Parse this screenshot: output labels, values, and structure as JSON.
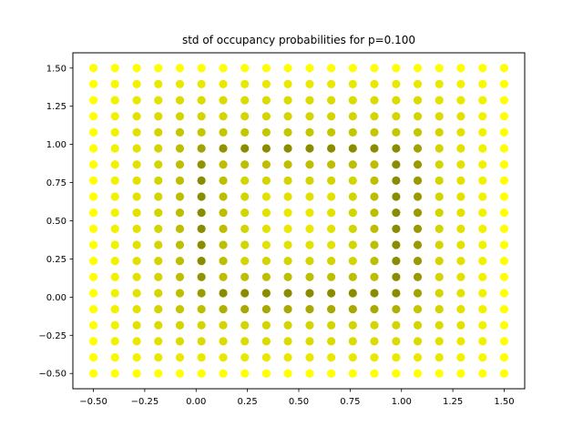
{
  "chart_data": {
    "type": "scatter",
    "title": "std of occupancy probabilities for p=0.100",
    "xlabel": "",
    "ylabel": "",
    "xlim": [
      -0.6,
      1.6
    ],
    "ylim": [
      -0.6,
      1.6
    ],
    "xticks": [
      -0.5,
      -0.25,
      0.0,
      0.25,
      0.5,
      0.75,
      1.0,
      1.25,
      1.5
    ],
    "yticks": [
      -0.5,
      -0.25,
      0.0,
      0.25,
      0.5,
      0.75,
      1.0,
      1.25,
      1.5
    ],
    "xtick_labels": [
      "−0.50",
      "−0.25",
      "0.00",
      "0.25",
      "0.50",
      "0.75",
      "1.00",
      "1.25",
      "1.50"
    ],
    "ytick_labels": [
      "−0.50",
      "−0.25",
      "0.00",
      "0.25",
      "0.50",
      "0.75",
      "1.00",
      "1.25",
      "1.50"
    ],
    "grid": false,
    "colormap": "black-to-yellow (brighter = lower std)",
    "color_low": "#ffff00",
    "color_high": "#6e6e00",
    "x": [
      -0.5,
      -0.395,
      -0.289,
      -0.184,
      -0.079,
      0.026,
      0.132,
      0.237,
      0.342,
      0.447,
      0.553,
      0.658,
      0.763,
      0.868,
      0.974,
      1.079,
      1.184,
      1.289,
      1.395,
      1.5
    ],
    "y": [
      1.5,
      1.395,
      1.289,
      1.184,
      1.079,
      0.974,
      0.868,
      0.763,
      0.658,
      0.553,
      0.447,
      0.342,
      0.237,
      0.132,
      0.026,
      -0.079,
      -0.184,
      -0.289,
      -0.395,
      -0.5
    ],
    "intensity_rows": [
      [
        0.0,
        0.0,
        0.0,
        0.0,
        0.0,
        0.0,
        0.0,
        0.0,
        0.0,
        0.0,
        0.0,
        0.0,
        0.0,
        0.0,
        0.0,
        0.0,
        0.0,
        0.0,
        0.0,
        0.0
      ],
      [
        0.0,
        0.05,
        0.1,
        0.15,
        0.15,
        0.15,
        0.15,
        0.15,
        0.15,
        0.15,
        0.15,
        0.15,
        0.15,
        0.15,
        0.15,
        0.15,
        0.15,
        0.1,
        0.05,
        0.0
      ],
      [
        0.0,
        0.1,
        0.15,
        0.2,
        0.25,
        0.25,
        0.25,
        0.25,
        0.25,
        0.25,
        0.25,
        0.25,
        0.25,
        0.25,
        0.25,
        0.25,
        0.2,
        0.15,
        0.1,
        0.0
      ],
      [
        0.0,
        0.1,
        0.2,
        0.25,
        0.3,
        0.3,
        0.3,
        0.3,
        0.3,
        0.3,
        0.3,
        0.3,
        0.3,
        0.3,
        0.3,
        0.3,
        0.25,
        0.2,
        0.1,
        0.0
      ],
      [
        0.0,
        0.1,
        0.2,
        0.3,
        0.4,
        0.4,
        0.4,
        0.4,
        0.4,
        0.4,
        0.4,
        0.4,
        0.4,
        0.4,
        0.4,
        0.4,
        0.3,
        0.2,
        0.1,
        0.0
      ],
      [
        0.0,
        0.1,
        0.2,
        0.3,
        0.45,
        0.65,
        0.75,
        0.8,
        0.8,
        0.8,
        0.8,
        0.8,
        0.8,
        0.8,
        0.8,
        0.65,
        0.3,
        0.2,
        0.1,
        0.0
      ],
      [
        0.0,
        0.1,
        0.2,
        0.3,
        0.45,
        0.75,
        0.45,
        0.45,
        0.45,
        0.45,
        0.45,
        0.45,
        0.45,
        0.45,
        0.8,
        0.7,
        0.3,
        0.2,
        0.1,
        0.0
      ],
      [
        0.0,
        0.1,
        0.2,
        0.3,
        0.45,
        0.8,
        0.45,
        0.3,
        0.3,
        0.3,
        0.3,
        0.3,
        0.3,
        0.45,
        0.8,
        0.7,
        0.3,
        0.2,
        0.1,
        0.0
      ],
      [
        0.0,
        0.1,
        0.2,
        0.3,
        0.45,
        0.8,
        0.45,
        0.3,
        0.2,
        0.2,
        0.2,
        0.2,
        0.3,
        0.45,
        0.8,
        0.7,
        0.3,
        0.2,
        0.1,
        0.0
      ],
      [
        0.0,
        0.1,
        0.2,
        0.3,
        0.45,
        0.8,
        0.45,
        0.3,
        0.2,
        0.15,
        0.15,
        0.2,
        0.3,
        0.45,
        0.8,
        0.7,
        0.3,
        0.2,
        0.1,
        0.0
      ],
      [
        0.0,
        0.1,
        0.2,
        0.3,
        0.45,
        0.8,
        0.45,
        0.3,
        0.2,
        0.15,
        0.15,
        0.2,
        0.3,
        0.45,
        0.8,
        0.7,
        0.3,
        0.2,
        0.1,
        0.0
      ],
      [
        0.0,
        0.1,
        0.2,
        0.3,
        0.45,
        0.8,
        0.45,
        0.3,
        0.2,
        0.2,
        0.2,
        0.2,
        0.3,
        0.45,
        0.8,
        0.7,
        0.3,
        0.2,
        0.1,
        0.0
      ],
      [
        0.0,
        0.1,
        0.2,
        0.3,
        0.45,
        0.8,
        0.45,
        0.3,
        0.3,
        0.3,
        0.3,
        0.3,
        0.3,
        0.45,
        0.8,
        0.7,
        0.3,
        0.2,
        0.1,
        0.0
      ],
      [
        0.0,
        0.1,
        0.2,
        0.3,
        0.45,
        0.75,
        0.45,
        0.45,
        0.45,
        0.45,
        0.45,
        0.45,
        0.45,
        0.45,
        0.8,
        0.7,
        0.3,
        0.2,
        0.1,
        0.0
      ],
      [
        0.0,
        0.1,
        0.2,
        0.3,
        0.45,
        0.7,
        0.8,
        0.8,
        0.8,
        0.8,
        0.8,
        0.8,
        0.8,
        0.8,
        0.8,
        0.65,
        0.3,
        0.2,
        0.1,
        0.0
      ],
      [
        0.0,
        0.1,
        0.2,
        0.3,
        0.4,
        0.45,
        0.55,
        0.6,
        0.6,
        0.6,
        0.6,
        0.6,
        0.6,
        0.6,
        0.55,
        0.4,
        0.3,
        0.2,
        0.1,
        0.0
      ],
      [
        0.0,
        0.1,
        0.2,
        0.25,
        0.3,
        0.3,
        0.3,
        0.3,
        0.3,
        0.3,
        0.3,
        0.3,
        0.3,
        0.3,
        0.3,
        0.3,
        0.25,
        0.2,
        0.1,
        0.0
      ],
      [
        0.0,
        0.1,
        0.15,
        0.2,
        0.25,
        0.25,
        0.25,
        0.25,
        0.25,
        0.25,
        0.25,
        0.25,
        0.25,
        0.25,
        0.25,
        0.25,
        0.2,
        0.15,
        0.1,
        0.0
      ],
      [
        0.0,
        0.05,
        0.1,
        0.15,
        0.15,
        0.15,
        0.15,
        0.15,
        0.15,
        0.15,
        0.15,
        0.15,
        0.15,
        0.15,
        0.15,
        0.15,
        0.15,
        0.1,
        0.05,
        0.0
      ],
      [
        0.0,
        0.0,
        0.0,
        0.0,
        0.0,
        0.0,
        0.0,
        0.0,
        0.0,
        0.0,
        0.0,
        0.0,
        0.0,
        0.0,
        0.0,
        0.0,
        0.0,
        0.0,
        0.0,
        0.0
      ]
    ]
  }
}
